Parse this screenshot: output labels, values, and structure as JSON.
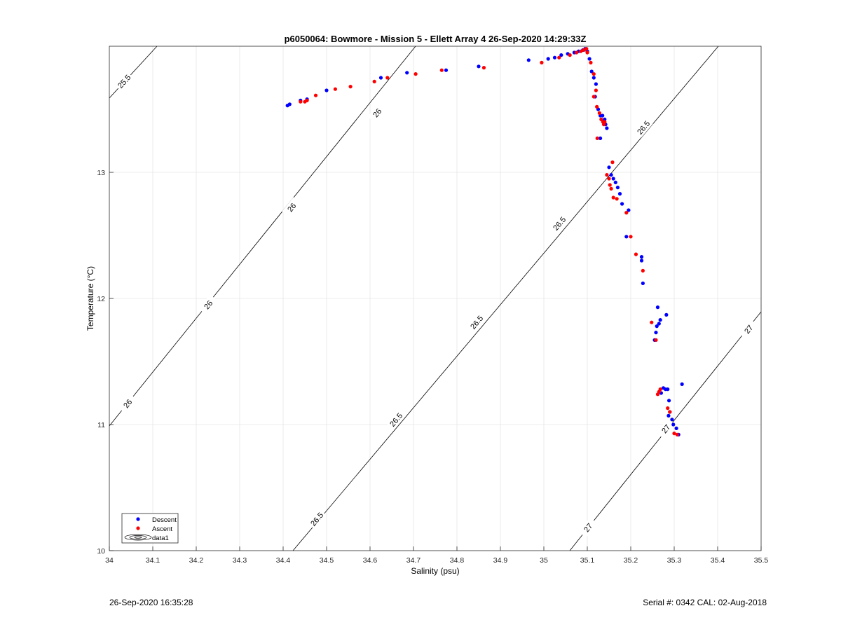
{
  "chart_data": {
    "type": "scatter",
    "title": "p6050064: Bowmore - Mission 5 - Ellett Array 4 26-Sep-2020 14:29:33Z",
    "xlabel": "Salinity (psu)",
    "ylabel": "Temperature (°C)",
    "xlim": [
      34,
      35.5
    ],
    "ylim": [
      10,
      14
    ],
    "xticks": [
      34,
      34.1,
      34.2,
      34.3,
      34.4,
      34.5,
      34.6,
      34.7,
      34.8,
      34.9,
      35,
      35.1,
      35.2,
      35.3,
      35.4,
      35.5
    ],
    "yticks": [
      10,
      11,
      12,
      13
    ],
    "grid": true,
    "legend_position": "bottom-left",
    "legend": [
      "Descent",
      "Ascent",
      "data1"
    ],
    "series": [
      {
        "name": "Descent",
        "color": "#0000ff",
        "points": [
          [
            34.41,
            13.53
          ],
          [
            34.415,
            13.54
          ],
          [
            34.44,
            13.57
          ],
          [
            34.455,
            13.58
          ],
          [
            34.5,
            13.65
          ],
          [
            34.625,
            13.75
          ],
          [
            34.685,
            13.79
          ],
          [
            34.775,
            13.81
          ],
          [
            34.85,
            13.84
          ],
          [
            34.965,
            13.89
          ],
          [
            35.01,
            13.9
          ],
          [
            35.025,
            13.91
          ],
          [
            35.04,
            13.93
          ],
          [
            35.055,
            13.94
          ],
          [
            35.07,
            13.95
          ],
          [
            35.08,
            13.96
          ],
          [
            35.09,
            13.97
          ],
          [
            35.095,
            13.98
          ],
          [
            35.1,
            13.96
          ],
          [
            35.105,
            13.9
          ],
          [
            35.11,
            13.8
          ],
          [
            35.115,
            13.75
          ],
          [
            35.12,
            13.7
          ],
          [
            35.118,
            13.6
          ],
          [
            35.125,
            13.5
          ],
          [
            35.13,
            13.45
          ],
          [
            35.135,
            13.45
          ],
          [
            35.14,
            13.42
          ],
          [
            35.142,
            13.38
          ],
          [
            35.145,
            13.35
          ],
          [
            35.13,
            13.27
          ],
          [
            35.15,
            13.04
          ],
          [
            35.155,
            12.98
          ],
          [
            35.16,
            12.95
          ],
          [
            35.165,
            12.92
          ],
          [
            35.17,
            12.88
          ],
          [
            35.175,
            12.83
          ],
          [
            35.18,
            12.75
          ],
          [
            35.195,
            12.7
          ],
          [
            35.19,
            12.49
          ],
          [
            35.225,
            12.33
          ],
          [
            35.225,
            12.3
          ],
          [
            35.228,
            12.12
          ],
          [
            35.262,
            11.93
          ],
          [
            35.268,
            11.83
          ],
          [
            35.265,
            11.8
          ],
          [
            35.26,
            11.78
          ],
          [
            35.258,
            11.73
          ],
          [
            35.255,
            11.67
          ],
          [
            35.282,
            11.87
          ],
          [
            35.275,
            11.29
          ],
          [
            35.28,
            11.28
          ],
          [
            35.285,
            11.28
          ],
          [
            35.27,
            11.25
          ],
          [
            35.288,
            11.19
          ],
          [
            35.29,
            11.1
          ],
          [
            35.287,
            11.07
          ],
          [
            35.295,
            11.04
          ],
          [
            35.298,
            11.0
          ],
          [
            35.305,
            10.97
          ],
          [
            35.31,
            10.92
          ],
          [
            35.318,
            11.32
          ]
        ]
      },
      {
        "name": "Ascent",
        "color": "#ff0000",
        "points": [
          [
            34.44,
            13.56
          ],
          [
            34.45,
            13.56
          ],
          [
            34.455,
            13.57
          ],
          [
            34.475,
            13.61
          ],
          [
            34.52,
            13.66
          ],
          [
            34.555,
            13.68
          ],
          [
            34.61,
            13.72
          ],
          [
            34.64,
            13.75
          ],
          [
            34.705,
            13.78
          ],
          [
            34.765,
            13.81
          ],
          [
            34.862,
            13.83
          ],
          [
            34.995,
            13.87
          ],
          [
            35.035,
            13.91
          ],
          [
            35.06,
            13.93
          ],
          [
            35.075,
            13.95
          ],
          [
            35.085,
            13.96
          ],
          [
            35.092,
            13.97
          ],
          [
            35.098,
            13.98
          ],
          [
            35.1,
            13.95
          ],
          [
            35.108,
            13.87
          ],
          [
            35.115,
            13.78
          ],
          [
            35.12,
            13.65
          ],
          [
            35.115,
            13.6
          ],
          [
            35.122,
            13.52
          ],
          [
            35.128,
            13.47
          ],
          [
            35.132,
            13.42
          ],
          [
            35.136,
            13.4
          ],
          [
            35.14,
            13.4
          ],
          [
            35.138,
            13.38
          ],
          [
            35.123,
            13.27
          ],
          [
            35.158,
            13.08
          ],
          [
            35.145,
            12.98
          ],
          [
            35.15,
            12.95
          ],
          [
            35.152,
            12.9
          ],
          [
            35.155,
            12.87
          ],
          [
            35.16,
            12.8
          ],
          [
            35.168,
            12.79
          ],
          [
            35.19,
            12.68
          ],
          [
            35.2,
            12.49
          ],
          [
            35.212,
            12.35
          ],
          [
            35.228,
            12.22
          ],
          [
            35.248,
            11.81
          ],
          [
            35.258,
            11.67
          ],
          [
            35.268,
            11.28
          ],
          [
            35.265,
            11.26
          ],
          [
            35.262,
            11.24
          ],
          [
            35.285,
            11.13
          ],
          [
            35.29,
            11.1
          ],
          [
            35.3,
            10.93
          ],
          [
            35.307,
            10.92
          ]
        ]
      }
    ],
    "contour_labels": {
      "c255": "25.5",
      "c26": "26",
      "c265": "26.5",
      "c27": "27"
    }
  },
  "footer": {
    "left": "26-Sep-2020 16:35:28",
    "right": "Serial #: 0342  CAL: 02-Aug-2018"
  }
}
